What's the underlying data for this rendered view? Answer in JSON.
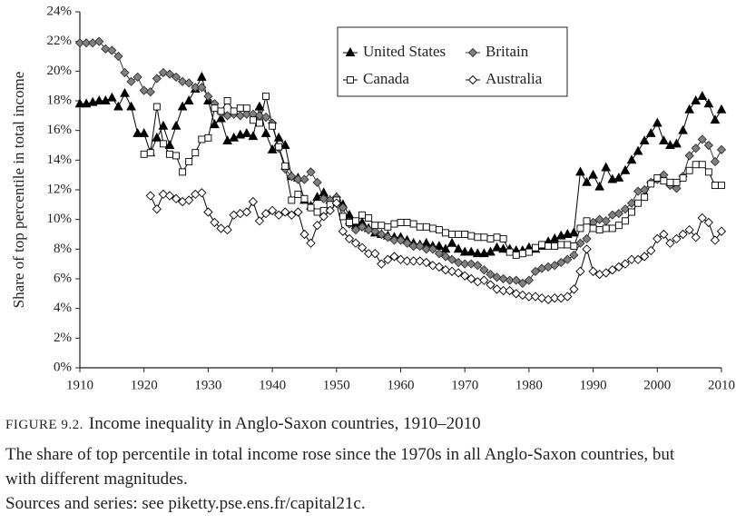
{
  "chart_data": {
    "type": "line",
    "y_label": "Share of top percentile in total income",
    "figure_label": "FIGURE 9.2.",
    "title": "Income inequality in Anglo-Saxon countries, 1910–2010",
    "description": "The share of top percentile in total income rose since the 1970s in all Anglo-Saxon countries, but with different magnitudes.",
    "source": "Sources and series: see piketty.pse.ens.fr/capital21c.",
    "legend": "top",
    "x": [
      1910,
      1911,
      1912,
      1913,
      1914,
      1915,
      1916,
      1917,
      1918,
      1919,
      1920,
      1921,
      1922,
      1923,
      1924,
      1925,
      1926,
      1927,
      1928,
      1929,
      1930,
      1931,
      1932,
      1933,
      1934,
      1935,
      1936,
      1937,
      1938,
      1939,
      1940,
      1941,
      1942,
      1943,
      1944,
      1945,
      1946,
      1947,
      1948,
      1949,
      1950,
      1951,
      1952,
      1953,
      1954,
      1955,
      1956,
      1957,
      1958,
      1959,
      1960,
      1961,
      1962,
      1963,
      1964,
      1965,
      1966,
      1967,
      1968,
      1969,
      1970,
      1971,
      1972,
      1973,
      1974,
      1975,
      1976,
      1977,
      1978,
      1979,
      1980,
      1981,
      1982,
      1983,
      1984,
      1985,
      1986,
      1987,
      1988,
      1989,
      1990,
      1991,
      1992,
      1993,
      1994,
      1995,
      1996,
      1997,
      1998,
      1999,
      2000,
      2001,
      2002,
      2003,
      2004,
      2005,
      2006,
      2007,
      2008,
      2009,
      2010
    ],
    "series": [
      {
        "name": "United States",
        "color": "#000000",
        "marker": "triangle",
        "marker_fill": "#000000",
        "values": [
          17.8,
          17.8,
          17.9,
          18.0,
          18.0,
          18.2,
          17.6,
          18.5,
          17.6,
          15.8,
          15.8,
          14.5,
          15.5,
          16.3,
          15.0,
          16.3,
          17.6,
          18.0,
          18.8,
          19.6,
          18.0,
          16.4,
          16.8,
          15.3,
          15.5,
          15.7,
          15.8,
          15.6,
          17.6,
          15.8,
          14.7,
          15.5,
          15.0,
          12.9,
          12.8,
          11.3,
          10.9,
          11.5,
          11.8,
          11.3,
          11.5,
          11.0,
          10.3,
          9.6,
          9.8,
          9.4,
          9.1,
          9.0,
          8.9,
          8.8,
          8.8,
          8.6,
          8.4,
          8.3,
          8.4,
          8.2,
          8.2,
          8.0,
          8.4,
          8.0,
          7.8,
          7.8,
          7.7,
          7.7,
          7.8,
          8.1,
          8.0,
          8.0,
          7.9,
          7.9,
          8.1,
          8.0,
          8.2,
          8.5,
          8.7,
          8.9,
          9.0,
          9.1,
          13.2,
          12.5,
          13.0,
          12.2,
          13.5,
          12.7,
          12.8,
          13.3,
          14.0,
          14.6,
          15.3,
          15.8,
          16.5,
          15.3,
          15.0,
          15.1,
          16.0,
          17.4,
          18.0,
          18.3,
          17.8,
          16.7,
          17.4
        ]
      },
      {
        "name": "Britain",
        "color": "#333333",
        "marker": "diamond",
        "marker_fill": "#808080",
        "values": [
          21.9,
          21.9,
          21.9,
          22.0,
          21.5,
          21.4,
          21.0,
          19.9,
          19.3,
          19.6,
          18.7,
          18.6,
          19.5,
          19.9,
          19.8,
          19.6,
          19.3,
          19.2,
          18.9,
          18.9,
          18.3,
          17.8,
          17.2,
          17.0,
          17.1,
          17.0,
          17.1,
          17.1,
          17.0,
          16.9,
          16.5,
          14.8,
          13.4,
          12.9,
          12.7,
          12.7,
          13.2,
          12.5,
          11.4,
          11.3,
          11.5,
          10.8,
          9.7,
          9.3,
          9.5,
          9.3,
          9.2,
          9.0,
          8.8,
          8.6,
          8.6,
          8.4,
          8.2,
          8.2,
          8.0,
          8.0,
          7.7,
          7.5,
          7.3,
          7.1,
          7.0,
          7.0,
          6.9,
          6.6,
          6.3,
          6.1,
          6.0,
          5.9,
          5.9,
          5.7,
          5.9,
          6.5,
          6.7,
          6.8,
          6.9,
          7.1,
          7.3,
          7.6,
          8.4,
          8.7,
          9.8,
          10.0,
          9.9,
          10.3,
          10.4,
          10.7,
          11.1,
          11.9,
          12.0,
          12.5,
          12.7,
          13.0,
          12.3,
          12.1,
          12.9,
          14.3,
          14.8,
          15.4,
          15.0,
          13.9,
          14.7
        ]
      },
      {
        "name": "Canada",
        "color": "#000000",
        "marker": "square",
        "marker_fill": "#ffffff",
        "values": [
          null,
          null,
          null,
          null,
          null,
          null,
          null,
          null,
          null,
          null,
          14.4,
          14.5,
          17.6,
          15.1,
          14.4,
          14.3,
          13.2,
          13.9,
          14.5,
          15.4,
          15.5,
          17.5,
          17.3,
          18.0,
          17.3,
          17.5,
          17.5,
          16.7,
          16.5,
          18.3,
          16.3,
          14.9,
          13.6,
          11.3,
          11.7,
          11.4,
          10.8,
          10.5,
          10.6,
          11.0,
          11.3,
          10.2,
          9.8,
          9.9,
          10.3,
          10.1,
          9.6,
          9.6,
          9.5,
          9.7,
          9.8,
          9.8,
          9.7,
          9.5,
          9.5,
          9.4,
          9.3,
          9.1,
          9.0,
          9.0,
          9.0,
          8.9,
          8.8,
          8.8,
          8.7,
          8.8,
          8.7,
          7.8,
          7.6,
          7.7,
          7.8,
          8.1,
          8.3,
          8.2,
          8.2,
          8.3,
          8.3,
          8.2,
          9.4,
          9.9,
          9.4,
          9.3,
          9.4,
          9.4,
          9.6,
          9.9,
          10.5,
          11.1,
          11.5,
          12.4,
          12.8,
          12.6,
          12.5,
          12.5,
          12.8,
          13.3,
          13.7,
          13.7,
          13.2,
          12.3,
          12.3
        ]
      },
      {
        "name": "Australia",
        "color": "#000000",
        "marker": "diamond",
        "marker_fill": "#ffffff",
        "values": [
          null,
          null,
          null,
          null,
          null,
          null,
          null,
          null,
          null,
          null,
          null,
          11.6,
          10.7,
          11.7,
          11.6,
          11.4,
          11.2,
          11.3,
          11.7,
          11.8,
          10.5,
          9.8,
          9.4,
          9.3,
          10.3,
          10.4,
          10.5,
          11.2,
          9.9,
          10.4,
          10.6,
          10.3,
          10.5,
          10.3,
          10.5,
          9.0,
          8.4,
          9.6,
          10.2,
          10.6,
          11.1,
          9.2,
          8.7,
          8.4,
          8.1,
          7.7,
          7.7,
          7.0,
          7.3,
          7.5,
          7.3,
          7.2,
          7.2,
          7.2,
          7.1,
          6.9,
          6.8,
          6.6,
          6.5,
          6.4,
          6.2,
          6.0,
          5.8,
          5.9,
          5.6,
          5.3,
          5.2,
          5.2,
          5.0,
          4.9,
          4.8,
          4.8,
          4.7,
          4.6,
          4.7,
          4.7,
          4.8,
          5.3,
          6.5,
          8.0,
          6.5,
          6.3,
          6.4,
          6.6,
          6.8,
          7.0,
          7.3,
          7.3,
          7.5,
          7.9,
          8.7,
          9.0,
          8.4,
          8.7,
          9.0,
          9.3,
          8.8,
          10.1,
          9.8,
          8.6,
          9.2
        ]
      }
    ],
    "xlim": [
      1910,
      2010
    ],
    "xticks": [
      1910,
      1920,
      1930,
      1940,
      1950,
      1960,
      1970,
      1980,
      1990,
      2000,
      2010
    ],
    "ylim": [
      0,
      24
    ],
    "yticks": [
      {
        "value": 0,
        "label": "0%"
      },
      {
        "value": 2,
        "label": "2%"
      },
      {
        "value": 4,
        "label": "4%"
      },
      {
        "value": 6,
        "label": "6%"
      },
      {
        "value": 8,
        "label": "8%"
      },
      {
        "value": 10,
        "label": "10%"
      },
      {
        "value": 12,
        "label": "12%"
      },
      {
        "value": 14,
        "label": "14%"
      },
      {
        "value": 16,
        "label": "16%"
      },
      {
        "value": 18,
        "label": "18%"
      },
      {
        "value": 20,
        "label": "20%"
      },
      {
        "value": 22,
        "label": "22%"
      },
      {
        "value": 24,
        "label": "24%"
      }
    ]
  }
}
